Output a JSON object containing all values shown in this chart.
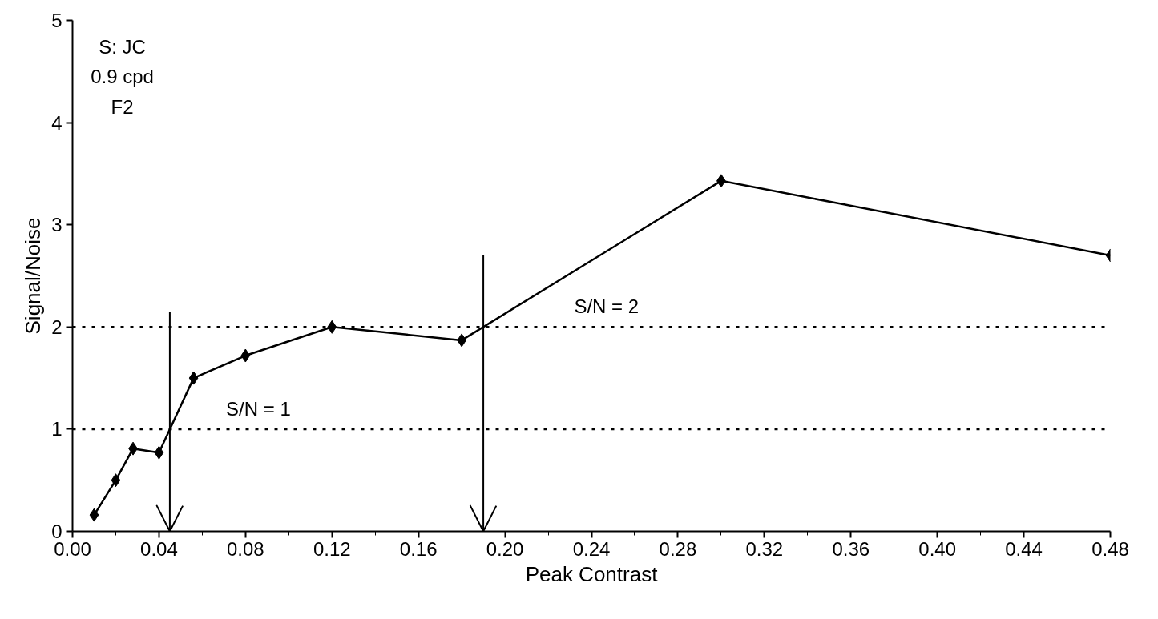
{
  "chart_data": {
    "type": "line",
    "xlabel": "Peak Contrast",
    "ylabel": "Signal/Noise",
    "x": [
      0.01,
      0.02,
      0.028,
      0.04,
      0.056,
      0.08,
      0.12,
      0.18,
      0.3,
      0.48
    ],
    "series": [
      {
        "color": "#000000",
        "values": [
          0.16,
          0.5,
          0.81,
          0.77,
          1.5,
          1.72,
          2.0,
          1.87,
          3.43,
          2.7
        ]
      }
    ],
    "xlim": [
      0,
      0.48
    ],
    "ylim": [
      0,
      5
    ],
    "xticks": [
      {
        "value": 0,
        "label": "0.00"
      },
      {
        "value": 0.04,
        "label": "0.04"
      },
      {
        "value": 0.08,
        "label": "0.08"
      },
      {
        "value": 0.12,
        "label": "0.12"
      },
      {
        "value": 0.16,
        "label": "0.16"
      },
      {
        "value": 0.2,
        "label": "0.20"
      },
      {
        "value": 0.24,
        "label": "0.24"
      },
      {
        "value": 0.28,
        "label": "0.28"
      },
      {
        "value": 0.32,
        "label": "0.32"
      },
      {
        "value": 0.36,
        "label": "0.36"
      },
      {
        "value": 0.4,
        "label": "0.40"
      },
      {
        "value": 0.44,
        "label": "0.44"
      },
      {
        "value": 0.48,
        "label": "0.48"
      }
    ],
    "yticks": [
      0,
      1,
      2,
      3,
      4,
      5
    ],
    "ref_lines": [
      {
        "axis": "y",
        "value": 2,
        "line_style": "dotted"
      },
      {
        "axis": "y",
        "value": 1,
        "line_style": "dotted"
      },
      {
        "axis": "x",
        "value": 0.045,
        "line_style": "solid"
      },
      {
        "axis": "x",
        "value": 0.19,
        "line_style": "solid"
      }
    ],
    "annotations": [
      "S: JC\n0.9 cpd\nF2",
      {
        "text": "S/N = 2",
        "x": 0.232,
        "y": 2
      },
      {
        "text": "S/N = 1",
        "x": 0.071,
        "y": 1
      }
    ],
    "marker": "diamond",
    "line_style": "solid",
    "grid": false
  }
}
